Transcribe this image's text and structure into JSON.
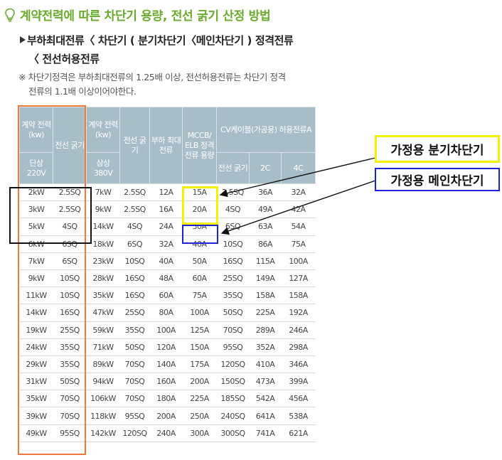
{
  "title": "계약전력에 따른 차단기 용량, 전선 굵기 산정 방법",
  "subhead": {
    "line1": "부하최대전류〈 차단기 ( 분기차단기〈메인차단기 ) 정격전류",
    "line2": "〈 전선허용전류"
  },
  "note": {
    "line1": "※ 차단기정격은 부하최대전류의 1.25배 이상, 전선허용전류는 차단기 정격",
    "line2": "전류의 1.1배 이상이어야한다."
  },
  "table": {
    "headers": {
      "contract_power": "계약 전력 (kw)",
      "wire1": "전선 굵기",
      "contract_power3": "계약 전력 (kw)",
      "wire2": "전선 굵기",
      "max_load": "부하 최대 전류",
      "breaker": "MCCB/ ELB 정격 전류 용량",
      "cv_group": "CV케이블(가공용) 허용전류A",
      "single_phase": "단상 220V",
      "three_phase": "삼상 380V",
      "cv_wire": "전선 굵기",
      "cv_2c": "2C",
      "cv_4c": "4C"
    },
    "rows": [
      [
        "2kW",
        "2.5SQ",
        "7kW",
        "2.5SQ",
        "12A",
        "15A",
        "2.5SQ",
        "36A",
        "32A"
      ],
      [
        "3kW",
        "2.5SQ",
        "9kW",
        "2.5SQ",
        "16A",
        "20A",
        "4SQ",
        "49A",
        "42A"
      ],
      [
        "5kW",
        "4SQ",
        "14kW",
        "4SQ",
        "24A",
        "30A",
        "6SQ",
        "63A",
        "54A"
      ],
      [
        "6kW",
        "6SQ",
        "18kW",
        "6SQ",
        "32A",
        "40A",
        "10SQ",
        "86A",
        "75A"
      ],
      [
        "7kW",
        "6SQ",
        "23kW",
        "10SQ",
        "40A",
        "50A",
        "16SQ",
        "115A",
        "100A"
      ],
      [
        "9kW",
        "10SQ",
        "28kW",
        "16SQ",
        "48A",
        "60A",
        "25SQ",
        "149A",
        "127A"
      ],
      [
        "11kW",
        "10SQ",
        "35kW",
        "16SQ",
        "60A",
        "75A",
        "35SQ",
        "158A",
        "158A"
      ],
      [
        "14kW",
        "16SQ",
        "47kW",
        "25SQ",
        "80A",
        "100A",
        "50SQ",
        "225A",
        "192A"
      ],
      [
        "19kW",
        "25SQ",
        "59kW",
        "35SQ",
        "100A",
        "125A",
        "70SQ",
        "289A",
        "246A"
      ],
      [
        "24kW",
        "35SQ",
        "71kW",
        "50SQ",
        "120A",
        "150A",
        "95SQ",
        "352A",
        "298A"
      ],
      [
        "29kW",
        "35SQ",
        "89kW",
        "70SQ",
        "140A",
        "175A",
        "120SQ",
        "410A",
        "346A"
      ],
      [
        "31kW",
        "50SQ",
        "94kW",
        "70SQ",
        "160A",
        "200A",
        "150SQ",
        "473A",
        "399A"
      ],
      [
        "35kW",
        "70SQ",
        "106kW",
        "70SQ",
        "180A",
        "225A",
        "185SQ",
        "542A",
        "456A"
      ],
      [
        "39kW",
        "70SQ",
        "118kW",
        "95SQ",
        "200A",
        "250A",
        "240SQ",
        "641A",
        "538A"
      ],
      [
        "49kW",
        "95SQ",
        "142kW",
        "120SQ",
        "240A",
        "300A",
        "300SQ",
        "741A",
        "621A"
      ]
    ]
  },
  "callouts": {
    "branch_breaker": "가정용 분기차단기",
    "main_breaker": "가정용 메인차단기"
  },
  "colors": {
    "title_green": "#6aaa2c",
    "header_bg": "#a7bdc8",
    "orange_frame": "#f07a3c",
    "yellow_frame": "#f5f000",
    "blue_frame": "#1e22d8",
    "black_frame": "#111111"
  },
  "icons": {
    "title": "lightbulb-icon",
    "subhead": "triangle-right-icon"
  }
}
